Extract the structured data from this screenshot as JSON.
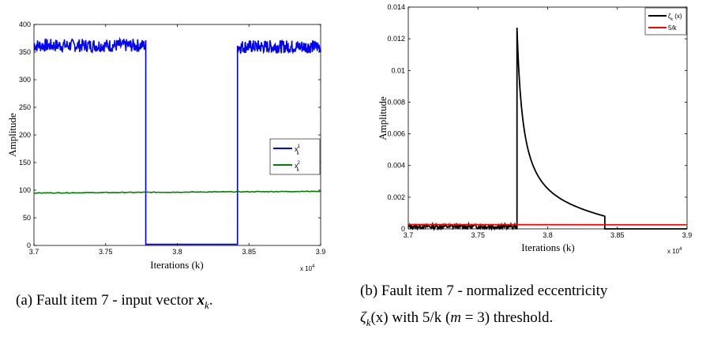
{
  "chart_data": [
    {
      "type": "line",
      "xlabel": "Iterations (k)",
      "ylabel": "Amplitude",
      "x_multiplier": "x 10",
      "x_multiplier_exp": "4",
      "xlim": [
        3.7,
        3.9
      ],
      "ylim": [
        0,
        400
      ],
      "xticks": [
        3.7,
        3.75,
        3.8,
        3.85,
        3.9
      ],
      "xtick_labels": [
        "3.7",
        "3.75",
        "3.8",
        "3.85",
        "3.9"
      ],
      "yticks": [
        0,
        50,
        100,
        150,
        200,
        250,
        300,
        350,
        400
      ],
      "ytick_labels": [
        "0",
        "50",
        "100",
        "150",
        "200",
        "250",
        "300",
        "350",
        "400"
      ],
      "grid": false,
      "legend_position": "center-right",
      "series": [
        {
          "name": "x_k^1",
          "legend_base": "x",
          "legend_sup": "1",
          "legend_sub": "k",
          "color": "#0000ff",
          "segments": [
            {
              "x_start": 3.7,
              "x_end": 3.778,
              "level": 362,
              "noise": 12
            },
            {
              "x_start": 3.778,
              "x_end": 3.842,
              "level": 2,
              "noise": 0
            },
            {
              "x_start": 3.842,
              "x_end": 3.9,
              "level": 360,
              "noise": 12
            }
          ]
        },
        {
          "name": "x_k^2",
          "legend_base": "x",
          "legend_sup": "2",
          "legend_sub": "k",
          "color": "#008000",
          "segments": [
            {
              "x_start": 3.7,
              "x_end": 3.9,
              "level_start": 95,
              "level_end": 98,
              "noise": 0.6
            }
          ]
        }
      ]
    },
    {
      "type": "line",
      "xlabel": "Iterations (k)",
      "ylabel": "Amplitude",
      "x_multiplier": "x 10",
      "x_multiplier_exp": "4",
      "xlim": [
        3.7,
        3.9
      ],
      "ylim": [
        0,
        0.014
      ],
      "xticks": [
        3.7,
        3.75,
        3.8,
        3.85,
        3.9
      ],
      "xtick_labels": [
        "3.7",
        "3.75",
        "3.8",
        "3.85",
        "3.9"
      ],
      "yticks": [
        0,
        0.002,
        0.004,
        0.006,
        0.008,
        0.01,
        0.012,
        0.014
      ],
      "ytick_labels": [
        "0",
        "0.002",
        "0.004",
        "0.006",
        "0.008",
        "0.01",
        "0.012",
        "0.014"
      ],
      "grid": false,
      "legend_position": "top-right",
      "series": [
        {
          "name": "ζ_k (x)",
          "legend_base": "ζ",
          "legend_sub": "k",
          "legend_tail": " (x)",
          "color": "#000000",
          "peak_x": 3.778,
          "peak_y": 0.0127,
          "tail_y": 0.0008,
          "end_x": 3.841,
          "noise_until_x": 3.778,
          "noise_amplitude": 0.0003
        },
        {
          "name": "5/k",
          "legend_base": "5/k",
          "color": "#ff0000",
          "x": [
            3.7,
            3.9
          ],
          "y": [
            0.00027,
            0.00026
          ]
        }
      ]
    }
  ],
  "captions": {
    "a": {
      "prefix": "(a) Fault item 7 - input vector ",
      "var": "x",
      "sub": "k",
      "suffix": "."
    },
    "b": {
      "line1": "(b) Fault item 7 - normalized eccentricity",
      "var": "ζ",
      "sub": "k",
      "rest": "(x) with 5/k (",
      "m": "m",
      "end": " = 3) threshold."
    }
  }
}
